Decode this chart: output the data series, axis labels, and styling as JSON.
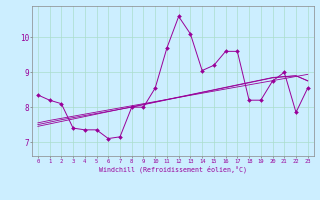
{
  "title": "",
  "xlabel": "Windchill (Refroidissement éolien,°C)",
  "background_color": "#cceeff",
  "grid_color": "#aaddcc",
  "line_color": "#990099",
  "x_data": [
    0,
    1,
    2,
    3,
    4,
    5,
    6,
    7,
    8,
    9,
    10,
    11,
    12,
    13,
    14,
    15,
    16,
    17,
    18,
    19,
    20,
    21,
    22,
    23
  ],
  "y_main": [
    8.35,
    8.2,
    8.1,
    7.4,
    7.35,
    7.35,
    7.1,
    7.15,
    8.0,
    8.0,
    8.55,
    9.7,
    10.6,
    10.1,
    9.05,
    9.2,
    9.6,
    9.6,
    8.2,
    8.2,
    8.75,
    9.0,
    7.85,
    8.55
  ],
  "y_reg1": [
    7.55,
    7.62,
    7.68,
    7.74,
    7.8,
    7.86,
    7.92,
    7.98,
    8.04,
    8.1,
    8.16,
    8.22,
    8.28,
    8.34,
    8.4,
    8.46,
    8.52,
    8.58,
    8.64,
    8.7,
    8.76,
    8.82,
    8.88,
    8.94
  ],
  "y_reg2": [
    7.45,
    7.52,
    7.59,
    7.66,
    7.73,
    7.8,
    7.87,
    7.94,
    8.01,
    8.08,
    8.15,
    8.22,
    8.29,
    8.36,
    8.43,
    8.5,
    8.57,
    8.64,
    8.71,
    8.78,
    8.85,
    8.88,
    8.9,
    8.75
  ],
  "y_reg3": [
    7.5,
    7.57,
    7.64,
    7.7,
    7.76,
    7.82,
    7.88,
    7.94,
    8.0,
    8.07,
    8.14,
    8.21,
    8.28,
    8.35,
    8.42,
    8.49,
    8.56,
    8.63,
    8.7,
    8.77,
    8.84,
    8.87,
    8.9,
    8.76
  ],
  "ylim": [
    6.6,
    10.9
  ],
  "yticks": [
    7,
    8,
    9,
    10
  ],
  "xticks": [
    0,
    1,
    2,
    3,
    4,
    5,
    6,
    7,
    8,
    9,
    10,
    11,
    12,
    13,
    14,
    15,
    16,
    17,
    18,
    19,
    20,
    21,
    22,
    23
  ]
}
